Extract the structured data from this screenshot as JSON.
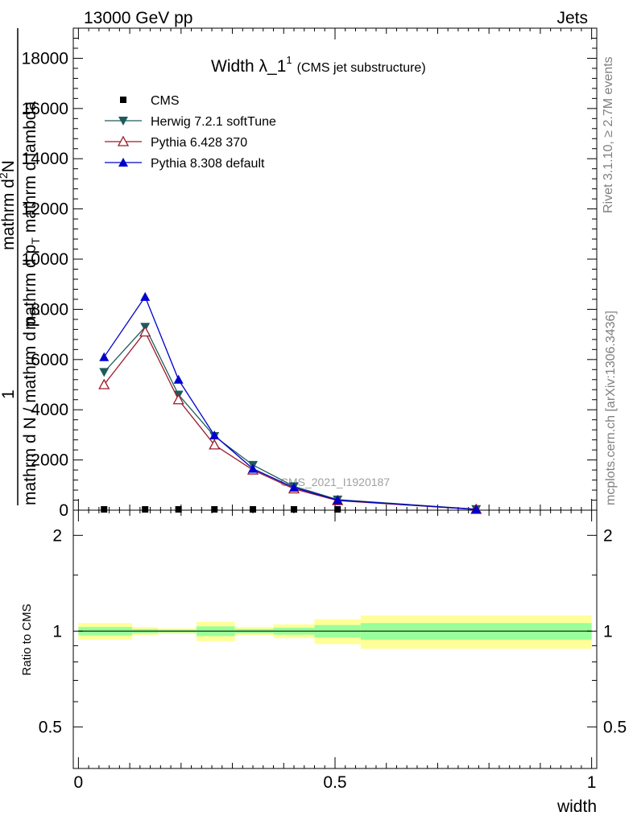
{
  "header": {
    "left": "13000 GeV pp",
    "right": "Jets"
  },
  "side": {
    "rivet": "Rivet 3.1.10, ≥ 2.7M events",
    "mcplots": "mcplots.cern.ch [arXiv:1306.3436]"
  },
  "chart_data": {
    "type": "line",
    "title_main": "Width λ_1",
    "title_sup": "1",
    "title_sub": "(CMS jet substructure)",
    "watermark": "CMS_2021_I1920187",
    "ylabel_top": {
      "num_a": "1",
      "den_a": "mathrm d N / mathrm d p",
      "den_a_sub": "T",
      "num_b": "mathrm d",
      "num_b_sup": "2",
      "num_b_tail": "N",
      "den_b": "mathrm d p",
      "den_b_sub": "T",
      "den_b_tail": "mathrm d lambda"
    },
    "ylabel_ratio": "Ratio to CMS",
    "xlabel": "width",
    "xlim": [
      -0.01,
      1.01
    ],
    "ylim": [
      0,
      19200
    ],
    "ratio_ylim": [
      0.37,
      2.4
    ],
    "x_ticks": [
      0,
      0.5,
      1
    ],
    "x_tick_labels": [
      "0",
      "0.5",
      "1"
    ],
    "y_ticks": [
      0,
      2000,
      4000,
      6000,
      8000,
      10000,
      12000,
      14000,
      16000,
      18000
    ],
    "y_tick_labels": [
      "0",
      "2000",
      "4000",
      "6000",
      "8000",
      "10000",
      "12000",
      "14000",
      "16000",
      "18000"
    ],
    "ratio_ticks": [
      0.5,
      1,
      2
    ],
    "ratio_tick_labels": [
      "0.5",
      "1",
      "2"
    ],
    "bin_edges": [
      0,
      0.105,
      0.155,
      0.23,
      0.305,
      0.38,
      0.46,
      0.55,
      1.0
    ],
    "x": [
      0.05,
      0.13,
      0.195,
      0.265,
      0.34,
      0.42,
      0.505,
      0.775
    ],
    "series": [
      {
        "name": "CMS",
        "color": "#000000",
        "marker": "square",
        "values": [
          30,
          30,
          25,
          20,
          15,
          12,
          8,
          3
        ]
      },
      {
        "name": "Herwig 7.2.1 softTune",
        "color": "#1e5c5c",
        "marker": "triangle-down",
        "values": [
          5500,
          7300,
          4600,
          2950,
          1800,
          950,
          420,
          40
        ]
      },
      {
        "name": "Pythia 6.428 370",
        "color": "#9b1a2a",
        "marker": "triangle-open",
        "values": [
          5000,
          7100,
          4400,
          2600,
          1600,
          850,
          380,
          30
        ]
      },
      {
        "name": "Pythia 8.308 default",
        "color": "#0000cc",
        "marker": "triangle-up",
        "values": [
          6100,
          8500,
          5200,
          2980,
          1650,
          900,
          400,
          30
        ]
      }
    ],
    "ratio_band_yellow": [
      [
        0.94,
        1.06
      ],
      [
        0.97,
        1.03
      ],
      [
        0.98,
        1.02
      ],
      [
        0.93,
        1.07
      ],
      [
        0.97,
        1.03
      ],
      [
        0.95,
        1.05
      ],
      [
        0.91,
        1.09
      ],
      [
        0.88,
        1.12
      ]
    ],
    "ratio_band_green": [
      [
        0.97,
        1.03
      ],
      [
        0.985,
        1.015
      ],
      [
        0.99,
        1.01
      ],
      [
        0.965,
        1.035
      ],
      [
        0.985,
        1.015
      ],
      [
        0.975,
        1.025
      ],
      [
        0.955,
        1.045
      ],
      [
        0.94,
        1.06
      ]
    ],
    "colors": {
      "band_yellow": "#ffff99",
      "band_green": "#99ff99"
    }
  }
}
